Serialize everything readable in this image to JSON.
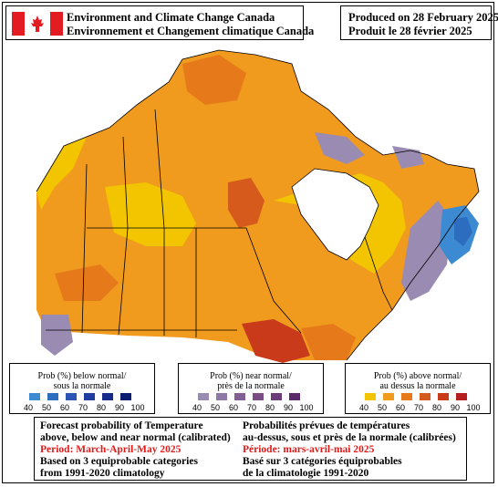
{
  "header": {
    "agency_en": "Environment and Climate Change Canada",
    "agency_fr": "Environnement et Changement climatique Canada",
    "produced_en": "Produced on 28 February 2025",
    "produced_fr": "Produit le 28 février 2025"
  },
  "legend": {
    "below": {
      "title_en": "Prob (%) below normal/",
      "title_fr": "sous la normale",
      "ticks": [
        "40",
        "50",
        "60",
        "70",
        "80",
        "90",
        "100"
      ],
      "colors": [
        "#3c8ad1",
        "#2d6dc0",
        "#2a55b5",
        "#1f3da1",
        "#152a8a",
        "#0c1c70"
      ]
    },
    "near": {
      "title_en": "Prob (%) near normal/",
      "title_fr": "près de la normale",
      "ticks": [
        "40",
        "50",
        "60",
        "70",
        "80",
        "90",
        "100"
      ],
      "colors": [
        "#9a8bb2",
        "#8e78a6",
        "#825f93",
        "#7a4e85",
        "#6b3c78",
        "#5b2a68"
      ]
    },
    "above": {
      "title_en": "Prob (%) above normal/",
      "title_fr": "au dessus la normale",
      "ticks": [
        "40",
        "50",
        "60",
        "70",
        "80",
        "90",
        "100"
      ],
      "colors": [
        "#f2c500",
        "#f09a1e",
        "#e67a1b",
        "#d55a1b",
        "#c83a1a",
        "#b51e1e"
      ]
    }
  },
  "info": {
    "en_line1": "Forecast probability of Temperature",
    "en_line2": "above, below and near normal (calibrated)",
    "en_period": "Period: March-April-May 2025",
    "en_line4": "Based on 3 equiprobable categories",
    "en_line5": "from 1991-2020 climatology",
    "fr_line1": "Probabilités prévues de températures",
    "fr_line2": "au-dessus, sous et près de la normale (calibrées)",
    "fr_period": "Période: mars-avril-mai 2025",
    "fr_line4": "Basé sur 3 catégories équiprobables",
    "fr_line5": "de la climatologie 1991-2020"
  },
  "map_colors": {
    "above_40_50": "#f2c500",
    "above_50_60": "#f09a1e",
    "above_60_70": "#e67a1b",
    "above_70_80": "#d55a1b",
    "above_80_90": "#c83a1a",
    "near_40_50": "#9a8bb2",
    "below_40_50": "#3c8ad1",
    "below_50_60": "#2d6dc0",
    "flag_red": "#e31b23"
  }
}
